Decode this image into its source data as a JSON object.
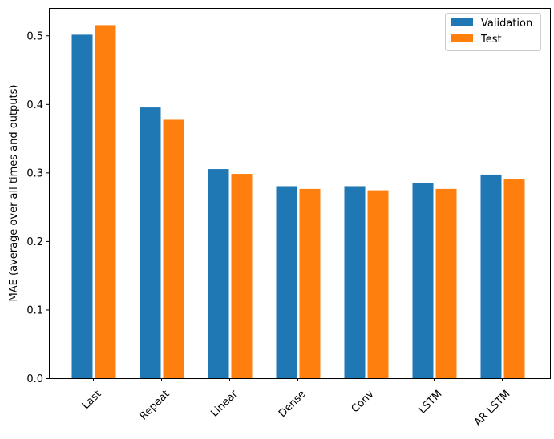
{
  "chart_data": {
    "type": "bar",
    "title": "",
    "xlabel": "",
    "ylabel": "MAE (average over all times and outputs)",
    "ylim": [
      0,
      0.54
    ],
    "yticks": [
      "0.0",
      "0.1",
      "0.2",
      "0.3",
      "0.4",
      "0.5"
    ],
    "categories": [
      "Last",
      "Repeat",
      "Linear",
      "Dense",
      "Conv",
      "LSTM",
      "AR LSTM"
    ],
    "series": [
      {
        "name": "Validation",
        "color": "#1f77b4",
        "values": [
          0.501,
          0.395,
          0.305,
          0.28,
          0.28,
          0.285,
          0.297
        ]
      },
      {
        "name": "Test",
        "color": "#ff7f0e",
        "values": [
          0.515,
          0.377,
          0.298,
          0.276,
          0.274,
          0.276,
          0.291
        ]
      }
    ],
    "legend": "top-right",
    "grid": false
  }
}
